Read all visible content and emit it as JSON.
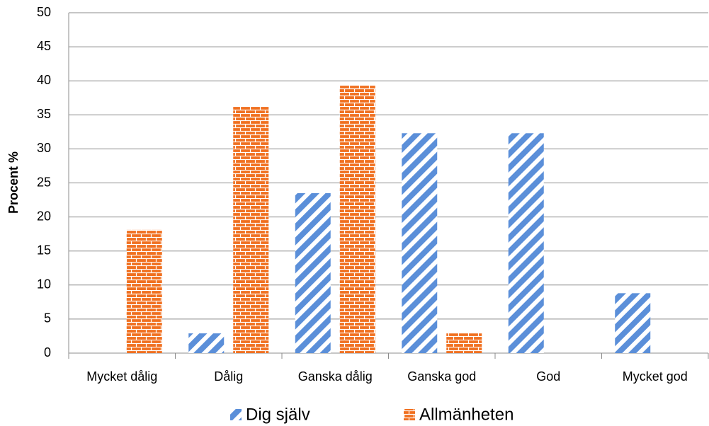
{
  "chart_data": {
    "type": "bar",
    "y_label": "Procent %",
    "categories": [
      "Mycket dålig",
      "Dålig",
      "Ganska dålig",
      "Ganska god",
      "God",
      "Mycket god"
    ],
    "series": [
      {
        "name": "Dig själv",
        "color": "#5b8fd9",
        "values": [
          0,
          2.9,
          23.5,
          32.3,
          32.3,
          8.8
        ]
      },
      {
        "name": "Allmänheten",
        "color": "#f07020",
        "values": [
          18.1,
          36.2,
          39.3,
          2.9,
          0,
          0
        ]
      }
    ],
    "ylim": [
      0,
      50
    ],
    "yticks": [
      0,
      5,
      10,
      15,
      20,
      25,
      30,
      35,
      40,
      45,
      50
    ],
    "grid": true,
    "legend": "bottom"
  }
}
